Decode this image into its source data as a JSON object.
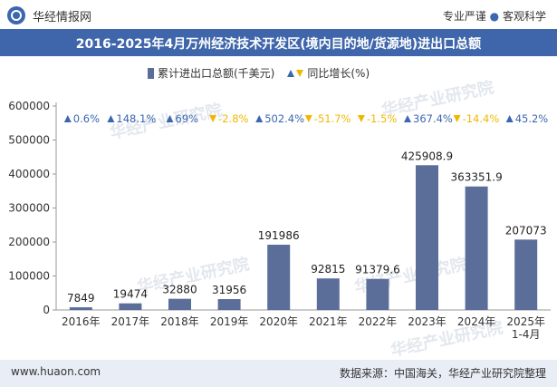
{
  "header": {
    "brand_name": "华经情报网",
    "tagline_left": "专业严谨",
    "tagline_sep": "●",
    "tagline_right": "客观科学"
  },
  "title": "2016-2025年4月万州经济技术开发区(境内目的地/货源地)进出口总额",
  "legend": {
    "series_bar": "累计进出口总额(千美元)",
    "series_growth": "同比增长(%)"
  },
  "watermarks": [
    "华经产业研究院",
    "www.huaon.com"
  ],
  "footer": {
    "website": "www.huaon.com",
    "source": "数据来源：中国海关，华经产业研究院整理"
  },
  "colors": {
    "bar": "#5b6e9a",
    "up": "#3b66b0",
    "down": "#f1b700",
    "header": "#3f66aa"
  },
  "chart_data": {
    "type": "bar",
    "categories": [
      "2016年",
      "2017年",
      "2018年",
      "2019年",
      "2020年",
      "2021年",
      "2022年",
      "2023年",
      "2024年",
      "2025年\n1-4月"
    ],
    "series": [
      {
        "name": "累计进出口总额(千美元)",
        "values": [
          7849,
          19474,
          32880,
          31956,
          191986,
          92815,
          91379.6,
          425908.9,
          363351.9,
          207073
        ]
      },
      {
        "name": "同比增长(%)",
        "values": [
          0.6,
          148.1,
          69,
          -2.8,
          502.4,
          -51.7,
          -1.5,
          367.4,
          -14.4,
          45.2
        ]
      }
    ],
    "value_labels": [
      "7849",
      "19474",
      "32880",
      "31956",
      "191986",
      "92815",
      "91379.6",
      "425908.9",
      "363351.9",
      "207073"
    ],
    "growth_labels": [
      "0.6%",
      "148.1%",
      "69%",
      "-2.8%",
      "502.4%",
      "-51.7%",
      "-1.5%",
      "367.4%",
      "-14.4%",
      "45.2%"
    ],
    "yticks": [
      0,
      100000,
      200000,
      300000,
      400000,
      500000,
      600000
    ],
    "ylim": [
      0,
      600000
    ],
    "grid": false,
    "legend_position": "top"
  }
}
